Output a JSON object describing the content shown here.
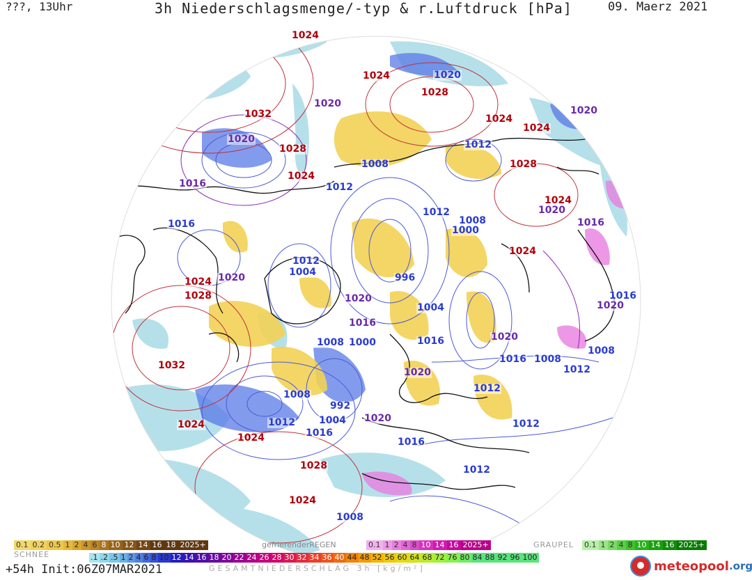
{
  "header": {
    "left": "???, 13Uhr",
    "title": "3h Niederschlagsmenge/-typ & r.Luftdruck [hPa]",
    "date": "09. Maerz 2021"
  },
  "isobar_labels": [
    {
      "text": "1024",
      "kind": "high"
    },
    {
      "text": "1024",
      "kind": "high"
    },
    {
      "text": "1020",
      "kind": "low"
    },
    {
      "text": "1028",
      "kind": "high"
    },
    {
      "text": "1020",
      "kind": "mid"
    },
    {
      "text": "1032",
      "kind": "high"
    },
    {
      "text": "1020",
      "kind": "mid"
    },
    {
      "text": "1028",
      "kind": "high"
    },
    {
      "text": "1024",
      "kind": "high"
    },
    {
      "text": "1020",
      "kind": "mid"
    },
    {
      "text": "1024",
      "kind": "high"
    },
    {
      "text": "1024",
      "kind": "high"
    },
    {
      "text": "1012",
      "kind": "low"
    },
    {
      "text": "1008",
      "kind": "low"
    },
    {
      "text": "1012",
      "kind": "low"
    },
    {
      "text": "1028",
      "kind": "high"
    },
    {
      "text": "1016",
      "kind": "mid"
    },
    {
      "text": "1012",
      "kind": "low"
    },
    {
      "text": "1024",
      "kind": "high"
    },
    {
      "text": "1020",
      "kind": "mid"
    },
    {
      "text": "1016",
      "kind": "mid"
    },
    {
      "text": "1008",
      "kind": "low"
    },
    {
      "text": "1016",
      "kind": "low"
    },
    {
      "text": "1000",
      "kind": "low"
    },
    {
      "text": "1024",
      "kind": "high"
    },
    {
      "text": "1012",
      "kind": "low"
    },
    {
      "text": "1004",
      "kind": "low"
    },
    {
      "text": "1024",
      "kind": "high"
    },
    {
      "text": "1020",
      "kind": "mid"
    },
    {
      "text": "996",
      "kind": "low"
    },
    {
      "text": "1028",
      "kind": "high"
    },
    {
      "text": "1020",
      "kind": "mid"
    },
    {
      "text": "1004",
      "kind": "low"
    },
    {
      "text": "1016",
      "kind": "low"
    },
    {
      "text": "1020",
      "kind": "mid"
    },
    {
      "text": "1016",
      "kind": "mid"
    },
    {
      "text": "1008",
      "kind": "low"
    },
    {
      "text": "1000",
      "kind": "low"
    },
    {
      "text": "1016",
      "kind": "low"
    },
    {
      "text": "1020",
      "kind": "mid"
    },
    {
      "text": "1032",
      "kind": "high"
    },
    {
      "text": "1016",
      "kind": "low"
    },
    {
      "text": "1008",
      "kind": "low"
    },
    {
      "text": "1008",
      "kind": "low"
    },
    {
      "text": "1020",
      "kind": "mid"
    },
    {
      "text": "1012",
      "kind": "low"
    },
    {
      "text": "1008",
      "kind": "low"
    },
    {
      "text": "992",
      "kind": "low"
    },
    {
      "text": "1012",
      "kind": "low"
    },
    {
      "text": "1004",
      "kind": "low"
    },
    {
      "text": "1024",
      "kind": "high"
    },
    {
      "text": "1016",
      "kind": "low"
    },
    {
      "text": "1024",
      "kind": "high"
    },
    {
      "text": "1020",
      "kind": "mid"
    },
    {
      "text": "1012",
      "kind": "low"
    },
    {
      "text": "1016",
      "kind": "low"
    },
    {
      "text": "1028",
      "kind": "high"
    },
    {
      "text": "1012",
      "kind": "low"
    },
    {
      "text": "1024",
      "kind": "high"
    },
    {
      "text": "1008",
      "kind": "low"
    },
    {
      "text": "1012",
      "kind": "low"
    }
  ],
  "legend": {
    "snow_label": "SCHNEE",
    "snow_colors": [
      "#f3d96a",
      "#f2d25a",
      "#eec84a",
      "#e7b93a",
      "#dba82f",
      "#cc9627",
      "#bd8522",
      "#aa731e",
      "#98631a",
      "#855417",
      "#724514",
      "#5f3711"
    ],
    "snow_values": [
      "0.1",
      "0.2",
      "0.5",
      "1",
      "2",
      "4",
      "6",
      "8",
      "10",
      "12",
      "14",
      "16",
      "18",
      "2025+"
    ],
    "freezing_rain_label": "gefrierenderREGEN",
    "freezing_rain_colors": [
      "#f2b2ee",
      "#ee9ae8",
      "#e97fe0",
      "#e466d6",
      "#dd4ccb",
      "#d633bd",
      "#cf1cae",
      "#c6089e",
      "#b8008a"
    ],
    "freezing_rain_values": [
      "0.1",
      "1",
      "2",
      "4",
      "8",
      "10",
      "14",
      "16",
      "2025+"
    ],
    "graupel_label": "GRAUPEL",
    "graupel_colors": [
      "#b8f0a8",
      "#98e685",
      "#78dc63",
      "#58d043",
      "#3cc32a",
      "#28b31a",
      "#1aa010",
      "#108c08",
      "#077a02"
    ],
    "graupel_values": [
      "0.1",
      "1",
      "2",
      "4",
      "8",
      "10",
      "14",
      "16",
      "2025+"
    ],
    "total_colors": [
      "#a8e4f0",
      "#8fd8ec",
      "#78c8e8",
      "#6ab0e6",
      "#5c98e4",
      "#4e80e2",
      "#4268de",
      "#3650d8",
      "#2a38d0",
      "#2420c0",
      "#3a14b0",
      "#5010a8",
      "#680ca0",
      "#800898",
      "#980690",
      "#b00488",
      "#c40478",
      "#d40866",
      "#de1852",
      "#e42c3e",
      "#e8402c",
      "#ec561c",
      "#ef6c10",
      "#f28408",
      "#f49c04",
      "#f4b404",
      "#f0c808",
      "#e4d810",
      "#d0e41c",
      "#b8ec2c",
      "#a0f03c",
      "#88f050",
      "#70ec64",
      "#58e47a"
    ],
    "total_values": [
      ".1",
      ".2",
      ".5",
      "1",
      "2",
      "4",
      "6",
      "8",
      "10",
      "12",
      "14",
      "16",
      "18",
      "20",
      "22",
      "24",
      "26",
      "28",
      "30",
      "32",
      "34",
      "36",
      "40",
      "44",
      "48",
      "52",
      "56",
      "60",
      "64",
      "68",
      "72",
      "76",
      "80",
      "84",
      "88",
      "92",
      "96",
      "100"
    ],
    "total_label": "GESAMTNIEDERSCHLAG 3h [kg/m²]"
  },
  "footer": {
    "run": "+54h Init:06Z07MAR2021",
    "brand": "meteopool",
    "brand_tld": ".org"
  }
}
